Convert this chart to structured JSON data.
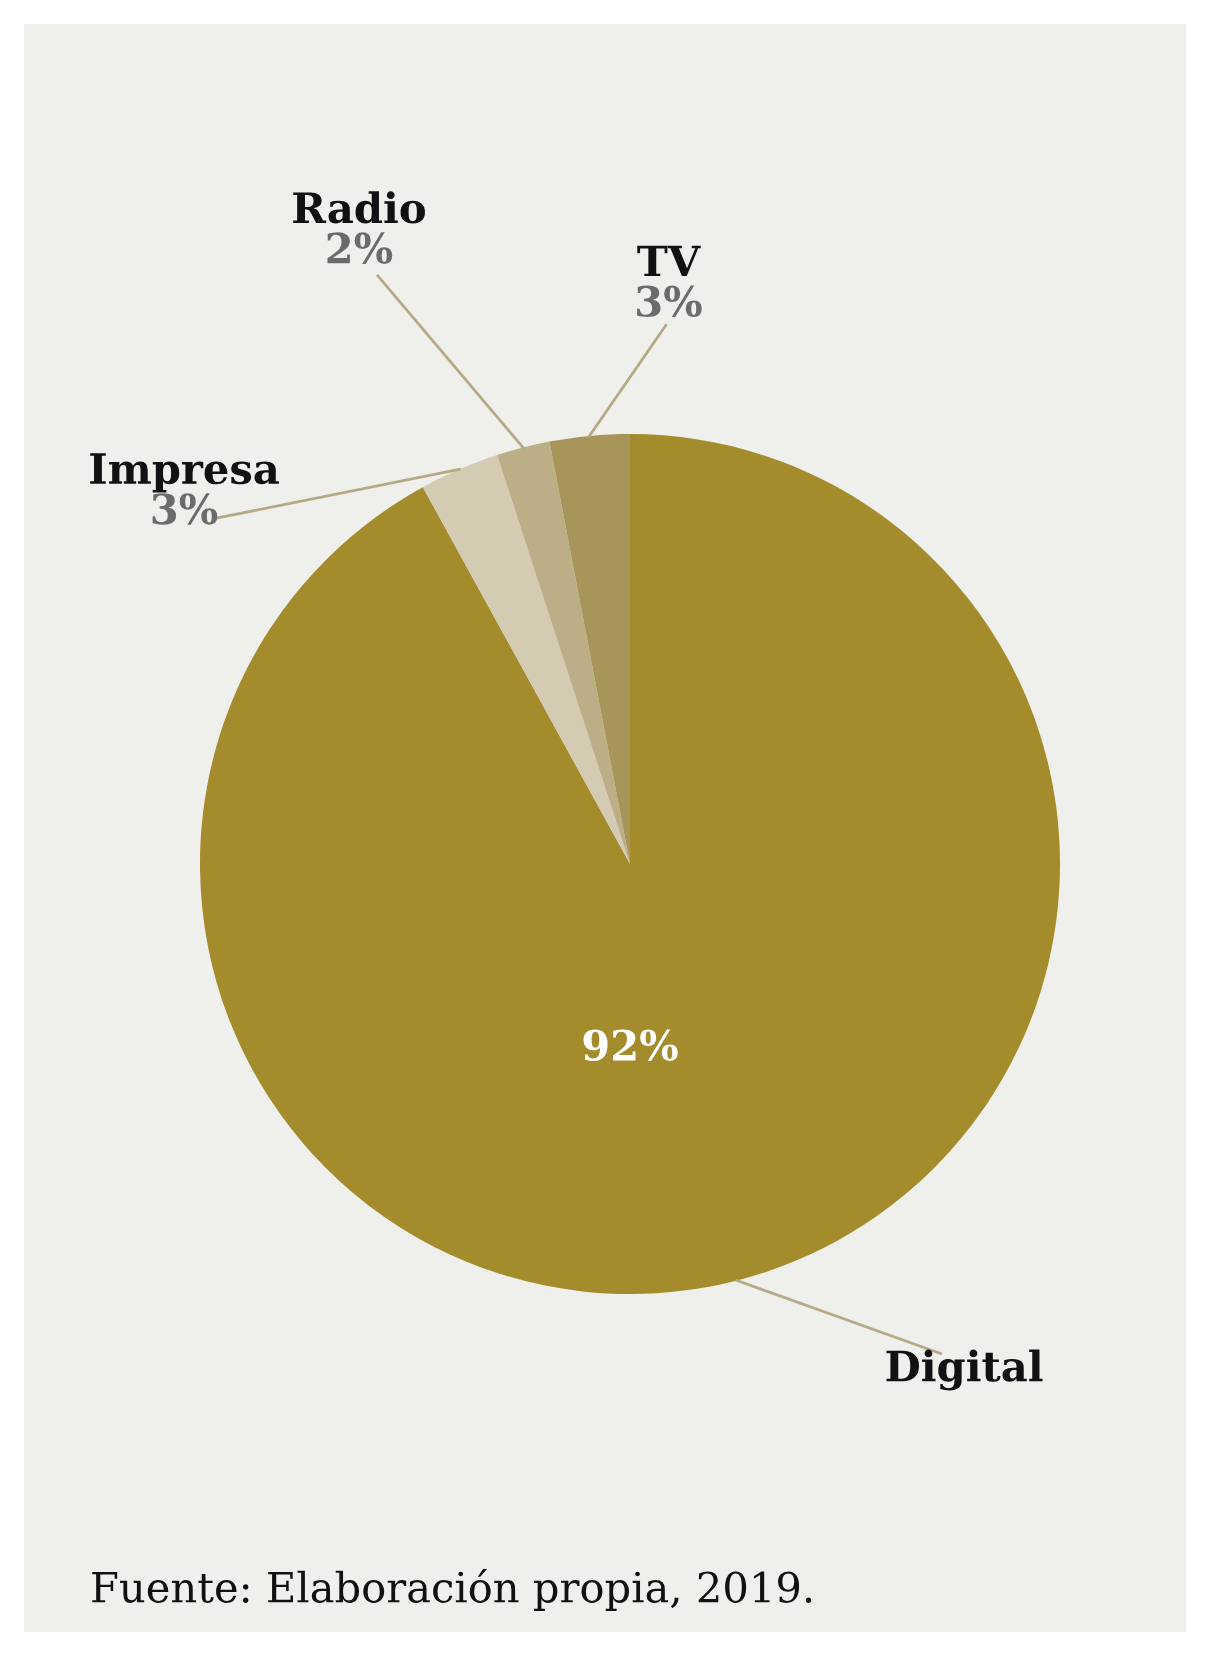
{
  "chart_data": {
    "type": "pie",
    "categories": [
      "Digital",
      "Impresa",
      "Radio",
      "TV"
    ],
    "values": [
      92,
      3,
      2,
      3
    ],
    "value_labels": [
      "92%",
      "3%",
      "2%",
      "3%"
    ],
    "colors": [
      "#a48b2c",
      "#d3cbb2",
      "#bcaf87",
      "#a8955a"
    ],
    "annotations": [
      "Fuente: Elaboración propia, 2019."
    ]
  }
}
